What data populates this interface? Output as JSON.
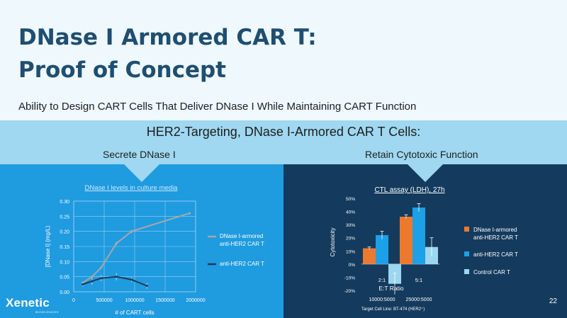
{
  "slide": {
    "title_line1": "DNase I Armored CAR T:",
    "title_line2": "Proof of Concept",
    "subtitle": "Ability to Design CART Cells That Deliver DNase I While Maintaining CART Function",
    "band_title": "HER2-Targeting, DNase I-Armored CAR T Cells:",
    "band_left": "Secrete DNase I",
    "band_right": "Retain Cytotoxic Function",
    "logo_text": "Xenetic",
    "logo_sub": "BIOSCIENCES",
    "page_number": "22"
  },
  "colors": {
    "title": "#1f4e70",
    "band": "#9fd8f0",
    "left_panel": "#1f9be0",
    "right_panel": "#143b5e",
    "orange": "#ec7a2e",
    "blue": "#1ca0e6",
    "light_blue": "#9cd6ef",
    "gray": "#a7a7a7",
    "navy": "#1f3a5a"
  },
  "chart_data": [
    {
      "type": "line",
      "title": "DNase I levels in culture media",
      "xlabel": "# of CART cells",
      "ylabel": "[DNase I] (mg/L)",
      "xlim": [
        0,
        2000000
      ],
      "ylim": [
        0,
        0.3
      ],
      "xticks": [
        0,
        500000,
        1000000,
        1500000,
        2000000
      ],
      "xtick_labels": [
        "0",
        "500000",
        "1000000",
        "1500000",
        "2000000"
      ],
      "yticks": [
        0,
        0.05,
        0.1,
        0.15,
        0.2,
        0.25,
        0.3
      ],
      "ytick_labels": [
        "0.00",
        "0.05",
        "0.10",
        "0.15",
        "0.20",
        "0.25",
        "0.30"
      ],
      "grid": true,
      "legend_position": "right",
      "series": [
        {
          "name": "DNase I-armored anti-HER2 CAR T",
          "color": "#a7a7a7",
          "x": [
            150000,
            300000,
            450000,
            700000,
            950000,
            1900000
          ],
          "y": [
            0.03,
            0.05,
            0.08,
            0.16,
            0.2,
            0.26
          ],
          "err": [
            0.003,
            0.004,
            0.004,
            0.005,
            0.005,
            0.004
          ]
        },
        {
          "name": "anti-HER2 CAR T",
          "color": "#1f3a5a",
          "x": [
            150000,
            300000,
            450000,
            700000,
            950000,
            1200000
          ],
          "y": [
            0.025,
            0.035,
            0.045,
            0.05,
            0.04,
            0.02
          ],
          "err": [
            0.008,
            0.012,
            0.01,
            0.012,
            0.008,
            0.01
          ]
        }
      ]
    },
    {
      "type": "bar",
      "title": "CTL assay (LDH), 27h",
      "xlabel": "E:T Ratio",
      "ylabel": "Cytotoxicity",
      "categories": [
        "2:1",
        "5:1"
      ],
      "category_sublabels": [
        "10000:5000",
        "25000:5000"
      ],
      "ylim": [
        -20,
        50
      ],
      "yticks": [
        -20,
        -10,
        0,
        10,
        20,
        30,
        40,
        50
      ],
      "ytick_labels": [
        "-20%",
        "-10%",
        "0%",
        "10%",
        "20%",
        "30%",
        "40%",
        "50%"
      ],
      "footnote": "Target Cell Line: BT-474 (HER2⁺)",
      "legend_position": "right",
      "series": [
        {
          "name": "DNase I-armored anti-HER2 CAR T",
          "color": "#ec7a2e",
          "values": [
            12,
            36
          ],
          "err": [
            1,
            1.5
          ]
        },
        {
          "name": "anti-HER2 CAR T",
          "color": "#1ca0e6",
          "values": [
            22,
            43
          ],
          "err": [
            3,
            3
          ]
        },
        {
          "name": "Control CAR T",
          "color": "#9cd6ef",
          "values": [
            -15,
            13
          ],
          "err": [
            8,
            7
          ]
        }
      ]
    }
  ]
}
